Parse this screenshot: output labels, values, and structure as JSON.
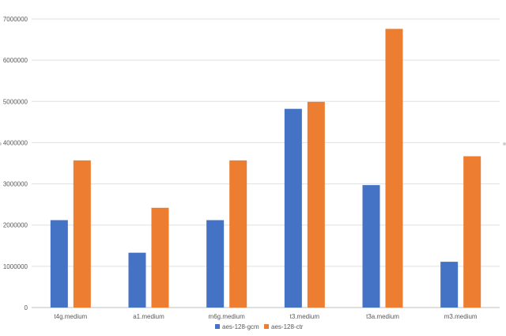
{
  "chart_data": {
    "type": "bar",
    "categories": [
      "t4g.medium",
      "a1.medium",
      "m6g.medium",
      "t3.medium",
      "t3a.medium",
      "m3.medium"
    ],
    "series": [
      {
        "name": "aes-128-gcm",
        "color": "#4472C4",
        "values": [
          2120000,
          1330000,
          2120000,
          4820000,
          2970000,
          1110000
        ]
      },
      {
        "name": "aes-128-ctr",
        "color": "#ED7D31",
        "values": [
          3570000,
          2420000,
          3570000,
          4990000,
          6760000,
          3670000
        ]
      }
    ],
    "yticks": [
      "0",
      "1000000",
      "2000000",
      "3000000",
      "4000000",
      "5000000",
      "6000000",
      "7000000"
    ],
    "ylim": [
      0,
      7000000
    ],
    "grid": true,
    "legend": "bottom",
    "title": "",
    "xlabel": "",
    "ylabel": ""
  }
}
